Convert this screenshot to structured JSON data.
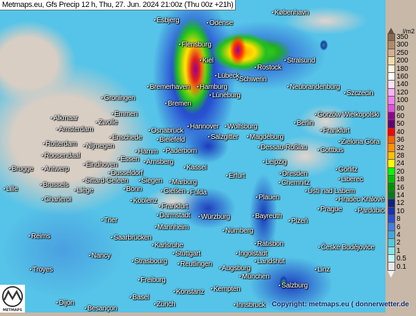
{
  "title": "Metmaps.eu, Gfs Precip 12 h, Thu, 27. Jun. 2024 21:00z (Thu 00z +21h)",
  "legend": {
    "unit": "l/m2",
    "labels": [
      "350",
      "300",
      "250",
      "200",
      "180",
      "160",
      "140",
      "120",
      "100",
      "80",
      "60",
      "50",
      "40",
      "36",
      "32",
      "28",
      "24",
      "20",
      "18",
      "16",
      "14",
      "12",
      "10",
      "8",
      "6",
      "4",
      "2",
      "1",
      "0.5",
      "0.1"
    ],
    "colors": [
      "#8b6a4f",
      "#b08a6a",
      "#d4b08c",
      "#f0dca8",
      "#fff6dc",
      "#ffffff",
      "#ffe0ff",
      "#ffb0ff",
      "#f080f0",
      "#e050e0",
      "#900090",
      "#600070",
      "#ff0000",
      "#ff6000",
      "#ff9000",
      "#ffc000",
      "#ffff00",
      "#00ff00",
      "#00c000",
      "#009000",
      "#007a20",
      "#102080",
      "#1830b0",
      "#2850d0",
      "#4080e0",
      "#40a8e0",
      "#50c8e0",
      "#80e8f0",
      "#c0f8ff",
      "#e8e8e8"
    ]
  },
  "cities": [
    "København",
    "Esbjerg",
    "Odense",
    "Flensburg",
    "Kiel",
    "Stralsund",
    "Rostock",
    "Lübeck",
    "Bremerhaven",
    "Hamburg",
    "Schwerin",
    "Neubrandenburg",
    "Szczecin",
    "Lüneburg",
    "Bremen",
    "Groningen",
    "Emmen",
    "Hannover",
    "Wolfsburg",
    "Berlin",
    "Frankfurt",
    "Gorzów Wielkopolski",
    "Alkmaar",
    "Zwolle",
    "Amsterdam",
    "Enschede",
    "Osnabrück",
    "Bielefeld",
    "Salzgitter",
    "Magdeburg",
    "Dessau-Roßlau",
    "Cottbus",
    "Zielona Góra",
    "Rotterdam",
    "Nijmegen",
    "Hamm",
    "Paderborn",
    "Roosendaal",
    "Eindhoven",
    "Essen",
    "Arnsberg",
    "Kassel",
    "Dusseldorf",
    "Leipzig",
    "Brugge",
    "Antwerp",
    "Sittard-Geleen",
    "Erfurt",
    "Siegen",
    "Marburg",
    "Dresden",
    "Görlitz",
    "Brussels",
    "Bonn",
    "Chemnitz",
    "Ústí nad Labem",
    "Liberec",
    "Lille",
    "Liège",
    "Gießen",
    "Fulda",
    "Plauen",
    "Charleroi",
    "Koblenz",
    "Hradec Králové",
    "Prague",
    "Pardubice",
    "Frankfurt",
    "Bayreuth",
    "Darmstadt",
    "Würzburg",
    "Trier",
    "Plzeň",
    "Mannheim",
    "Nürnberg",
    "Reims",
    "Saarbrücken",
    "Karlsruhe",
    "Ratisbon",
    "České Budějovice",
    "Stuttgart",
    "Ingolstadt",
    "Nancy",
    "Landshut",
    "Strasbourg",
    "Reutlingen",
    "Augsburg",
    "Troyes",
    "München",
    "Linz",
    "Freiburg",
    "Salzburg",
    "Kempten",
    "Konstanz",
    "Basel",
    "Innsbruck",
    "Dijon",
    "Besançon",
    "Zürich"
  ],
  "copyright": "Copyright: metmaps.eu ( donnerwetter.de",
  "logo_text": "METMAPS"
}
